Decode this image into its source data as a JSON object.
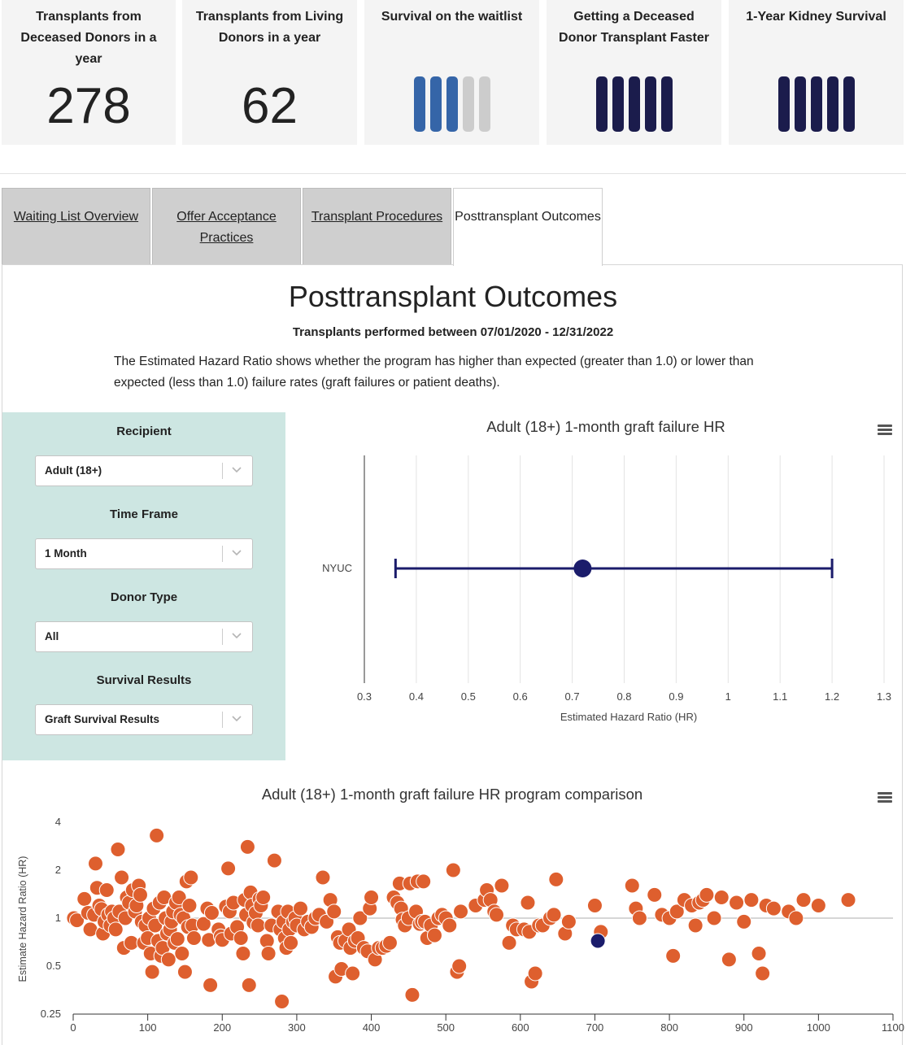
{
  "cards": [
    {
      "title": "Transplants from Deceased Donors in a year",
      "value": "278"
    },
    {
      "title": "Transplants from Living Donors in a year",
      "value": "62"
    },
    {
      "title": "Survival on the waitlist",
      "rating": 3,
      "max": 5,
      "color": "#3565a8",
      "empty_color": "#cccccc"
    },
    {
      "title": "Getting a Deceased Donor Transplant Faster",
      "rating": 5,
      "max": 5,
      "color": "#1b1c4c",
      "empty_color": "#cccccc"
    },
    {
      "title": "1-Year Kidney Survival",
      "rating": 5,
      "max": 5,
      "color": "#1b1c4c",
      "empty_color": "#cccccc"
    }
  ],
  "tabs": [
    {
      "label": "Waiting List Overview",
      "active": false
    },
    {
      "label": "Offer Acceptance Practices",
      "active": false
    },
    {
      "label": "Transplant Procedures",
      "active": false
    },
    {
      "label": "Posttransplant Outcomes",
      "active": true
    }
  ],
  "main": {
    "title": "Posttransplant Outcomes",
    "subtitle": "Transplants performed between 07/01/2020 - 12/31/2022",
    "description": "The Estimated Hazard Ratio shows whether the program has higher than expected (greater than 1.0) or lower than expected (less than 1.0) failure rates (graft failures or patient deaths)."
  },
  "filters": [
    {
      "label": "Recipient",
      "value": "Adult (18+)"
    },
    {
      "label": "Time Frame",
      "value": "1 Month"
    },
    {
      "label": "Donor Type",
      "value": "All"
    },
    {
      "label": "Survival Results",
      "value": "Graft Survival Results"
    }
  ],
  "chart_data": [
    {
      "type": "errorbar",
      "title": "Adult (18+) 1-month graft failure HR",
      "xlabel": "Estimated Hazard Ratio (HR)",
      "ylabel": "",
      "categories": [
        "NYUC"
      ],
      "estimate": 0.72,
      "lower": 0.36,
      "upper": 1.2,
      "xlim": [
        0.3,
        1.3
      ],
      "xticks": [
        "0.3",
        "0.4",
        "0.5",
        "0.6",
        "0.7",
        "0.8",
        "0.9",
        "1",
        "1.1",
        "1.2",
        "1.3"
      ],
      "color": "#1b1c6b",
      "grid": true
    },
    {
      "type": "scatter",
      "title": "Adult (18+) 1-month graft failure HR program comparison",
      "xlabel": "",
      "ylabel": "Estimate Hazard Ratio (HR)",
      "log_scale_y": true,
      "xlim": [
        0,
        1100
      ],
      "ylim": [
        0.25,
        4
      ],
      "xticks": [
        "0",
        "100",
        "200",
        "300",
        "400",
        "500",
        "600",
        "700",
        "800",
        "900",
        "1000",
        "1100"
      ],
      "yticks": [
        "0.25",
        "0.5",
        "1",
        "2",
        "4"
      ],
      "reference_line": 1,
      "point_color": "#de5f2e",
      "highlight_color": "#1b1c6b",
      "highlight": {
        "x": 704,
        "y": 0.72
      },
      "points": [
        [
          1,
          1.0
        ],
        [
          5,
          0.97
        ],
        [
          15,
          1.32
        ],
        [
          20,
          1.08
        ],
        [
          23,
          0.85
        ],
        [
          28,
          1.05
        ],
        [
          30,
          2.2
        ],
        [
          32,
          1.55
        ],
        [
          35,
          1.2
        ],
        [
          38,
          1.14
        ],
        [
          40,
          0.8
        ],
        [
          42,
          0.95
        ],
        [
          45,
          1.5
        ],
        [
          47,
          1.05
        ],
        [
          50,
          0.9
        ],
        [
          52,
          1.1
        ],
        [
          55,
          1.0
        ],
        [
          57,
          0.85
        ],
        [
          60,
          2.7
        ],
        [
          62,
          1.1
        ],
        [
          65,
          1.8
        ],
        [
          68,
          0.65
        ],
        [
          70,
          1.0
        ],
        [
          72,
          1.35
        ],
        [
          75,
          1.25
        ],
        [
          78,
          0.7
        ],
        [
          80,
          1.5
        ],
        [
          83,
          1.1
        ],
        [
          85,
          1.2
        ],
        [
          88,
          1.6
        ],
        [
          90,
          1.4
        ],
        [
          92,
          0.95
        ],
        [
          95,
          0.7
        ],
        [
          97,
          0.9
        ],
        [
          100,
          0.75
        ],
        [
          102,
          1.0
        ],
        [
          104,
          0.6
        ],
        [
          106,
          0.46
        ],
        [
          108,
          1.15
        ],
        [
          110,
          0.9
        ],
        [
          112,
          3.3
        ],
        [
          114,
          0.72
        ],
        [
          116,
          1.25
        ],
        [
          118,
          0.58
        ],
        [
          120,
          0.65
        ],
        [
          122,
          1.35
        ],
        [
          124,
          1.0
        ],
        [
          126,
          0.8
        ],
        [
          128,
          0.55
        ],
        [
          130,
          0.85
        ],
        [
          132,
          0.95
        ],
        [
          134,
          1.1
        ],
        [
          136,
          0.7
        ],
        [
          138,
          1.25
        ],
        [
          140,
          0.74
        ],
        [
          142,
          1.35
        ],
        [
          144,
          1.05
        ],
        [
          146,
          0.6
        ],
        [
          148,
          1.0
        ],
        [
          150,
          0.46
        ],
        [
          152,
          1.7
        ],
        [
          154,
          0.88
        ],
        [
          156,
          1.2
        ],
        [
          158,
          1.8
        ],
        [
          160,
          0.9
        ],
        [
          162,
          0.75
        ],
        [
          175,
          0.92
        ],
        [
          180,
          1.15
        ],
        [
          182,
          0.73
        ],
        [
          184,
          0.38
        ],
        [
          186,
          1.08
        ],
        [
          195,
          0.85
        ],
        [
          198,
          0.77
        ],
        [
          200,
          0.73
        ],
        [
          205,
          1.18
        ],
        [
          208,
          2.05
        ],
        [
          210,
          1.1
        ],
        [
          212,
          0.8
        ],
        [
          215,
          1.25
        ],
        [
          220,
          0.88
        ],
        [
          225,
          0.75
        ],
        [
          228,
          0.6
        ],
        [
          230,
          1.3
        ],
        [
          232,
          1.05
        ],
        [
          234,
          2.8
        ],
        [
          236,
          0.38
        ],
        [
          238,
          1.45
        ],
        [
          240,
          1.2
        ],
        [
          242,
          0.94
        ],
        [
          245,
          1.08
        ],
        [
          248,
          0.9
        ],
        [
          250,
          1.32
        ],
        [
          252,
          1.2
        ],
        [
          255,
          1.35
        ],
        [
          260,
          0.72
        ],
        [
          262,
          0.6
        ],
        [
          266,
          0.9
        ],
        [
          270,
          2.3
        ],
        [
          275,
          1.1
        ],
        [
          278,
          0.85
        ],
        [
          280,
          0.3
        ],
        [
          282,
          0.95
        ],
        [
          284,
          0.75
        ],
        [
          286,
          0.65
        ],
        [
          288,
          1.1
        ],
        [
          290,
          0.85
        ],
        [
          292,
          0.7
        ],
        [
          295,
          0.95
        ],
        [
          298,
          1.0
        ],
        [
          300,
          0.9
        ],
        [
          305,
          1.15
        ],
        [
          310,
          0.85
        ],
        [
          315,
          0.95
        ],
        [
          320,
          0.88
        ],
        [
          325,
          1.0
        ],
        [
          330,
          1.05
        ],
        [
          335,
          1.8
        ],
        [
          340,
          0.95
        ],
        [
          345,
          1.3
        ],
        [
          350,
          1.1
        ],
        [
          352,
          0.43
        ],
        [
          355,
          0.76
        ],
        [
          358,
          0.7
        ],
        [
          360,
          0.48
        ],
        [
          365,
          0.72
        ],
        [
          370,
          0.85
        ],
        [
          372,
          0.65
        ],
        [
          375,
          0.45
        ],
        [
          378,
          0.72
        ],
        [
          382,
          0.75
        ],
        [
          385,
          1.0
        ],
        [
          390,
          0.65
        ],
        [
          395,
          0.62
        ],
        [
          398,
          1.15
        ],
        [
          400,
          1.35
        ],
        [
          405,
          0.55
        ],
        [
          410,
          0.65
        ],
        [
          415,
          0.65
        ],
        [
          420,
          0.67
        ],
        [
          425,
          0.7
        ],
        [
          430,
          1.35
        ],
        [
          435,
          1.25
        ],
        [
          438,
          1.65
        ],
        [
          440,
          1.15
        ],
        [
          442,
          0.98
        ],
        [
          445,
          0.9
        ],
        [
          450,
          1.0
        ],
        [
          452,
          1.65
        ],
        [
          455,
          0.33
        ],
        [
          460,
          1.1
        ],
        [
          462,
          1.7
        ],
        [
          465,
          0.92
        ],
        [
          468,
          0.95
        ],
        [
          470,
          1.7
        ],
        [
          472,
          0.95
        ],
        [
          475,
          0.75
        ],
        [
          480,
          0.9
        ],
        [
          485,
          0.78
        ],
        [
          490,
          1.0
        ],
        [
          495,
          1.05
        ],
        [
          500,
          1.0
        ],
        [
          505,
          0.9
        ],
        [
          510,
          2.0
        ],
        [
          515,
          0.46
        ],
        [
          518,
          0.5
        ],
        [
          520,
          1.1
        ],
        [
          540,
          1.2
        ],
        [
          552,
          1.3
        ],
        [
          555,
          1.5
        ],
        [
          560,
          1.3
        ],
        [
          565,
          1.1
        ],
        [
          568,
          1.05
        ],
        [
          575,
          1.6
        ],
        [
          585,
          0.7
        ],
        [
          590,
          0.9
        ],
        [
          595,
          0.85
        ],
        [
          605,
          0.85
        ],
        [
          610,
          1.25
        ],
        [
          612,
          0.82
        ],
        [
          615,
          0.4
        ],
        [
          620,
          0.45
        ],
        [
          625,
          0.9
        ],
        [
          630,
          0.9
        ],
        [
          640,
          1.0
        ],
        [
          645,
          1.05
        ],
        [
          648,
          1.75
        ],
        [
          660,
          0.8
        ],
        [
          665,
          0.95
        ],
        [
          700,
          1.2
        ],
        [
          708,
          0.82
        ],
        [
          750,
          1.6
        ],
        [
          755,
          1.15
        ],
        [
          760,
          1.0
        ],
        [
          780,
          1.4
        ],
        [
          790,
          1.05
        ],
        [
          800,
          1.0
        ],
        [
          805,
          0.58
        ],
        [
          810,
          1.1
        ],
        [
          820,
          1.3
        ],
        [
          830,
          1.2
        ],
        [
          835,
          0.9
        ],
        [
          840,
          1.25
        ],
        [
          845,
          1.3
        ],
        [
          850,
          1.4
        ],
        [
          860,
          1.0
        ],
        [
          870,
          1.35
        ],
        [
          880,
          0.55
        ],
        [
          890,
          1.25
        ],
        [
          900,
          0.95
        ],
        [
          910,
          1.3
        ],
        [
          920,
          0.6
        ],
        [
          925,
          0.45
        ],
        [
          930,
          1.2
        ],
        [
          940,
          1.15
        ],
        [
          960,
          1.1
        ],
        [
          970,
          1.0
        ],
        [
          980,
          1.3
        ],
        [
          1000,
          1.2
        ],
        [
          1040,
          1.3
        ]
      ]
    }
  ]
}
